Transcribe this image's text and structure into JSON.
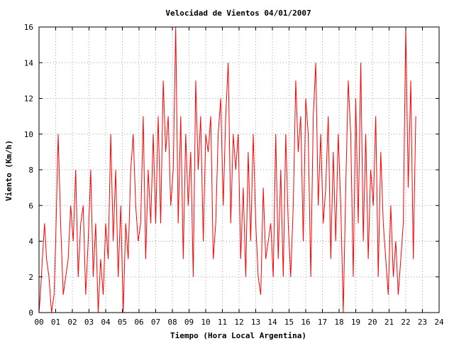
{
  "chart_data": {
    "type": "line",
    "title": "Velocidad de Vientos 04/01/2007",
    "xlabel": "Tiempo (Hora Local Argentina)",
    "ylabel": "Viento (Km/h)",
    "xlim": [
      0,
      24
    ],
    "ylim": [
      0,
      16
    ],
    "x_tick_labels": [
      "00",
      "01",
      "02",
      "03",
      "04",
      "05",
      "06",
      "07",
      "08",
      "09",
      "10",
      "11",
      "12",
      "13",
      "14",
      "15",
      "16",
      "17",
      "18",
      "19",
      "20",
      "21",
      "22",
      "23",
      "24"
    ],
    "y_tick_labels": [
      "0",
      "2",
      "4",
      "6",
      "8",
      "10",
      "12",
      "14",
      "16"
    ],
    "grid": true,
    "legend": "none",
    "series": [
      {
        "color": "#ff0000",
        "x": [
          0.0,
          0.08,
          0.2,
          0.33,
          0.45,
          0.6,
          0.75,
          0.9,
          1.0,
          1.15,
          1.3,
          1.45,
          1.6,
          1.75,
          1.9,
          2.05,
          2.2,
          2.35,
          2.5,
          2.65,
          2.8,
          2.95,
          3.1,
          3.25,
          3.4,
          3.55,
          3.7,
          3.85,
          4.0,
          4.15,
          4.3,
          4.45,
          4.6,
          4.75,
          4.9,
          5.05,
          5.2,
          5.35,
          5.5,
          5.65,
          5.8,
          5.95,
          6.1,
          6.25,
          6.4,
          6.55,
          6.7,
          6.85,
          7.0,
          7.15,
          7.3,
          7.45,
          7.6,
          7.75,
          7.9,
          8.05,
          8.2,
          8.35,
          8.5,
          8.65,
          8.8,
          8.95,
          9.1,
          9.25,
          9.4,
          9.55,
          9.7,
          9.85,
          10.0,
          10.15,
          10.3,
          10.45,
          10.6,
          10.75,
          10.9,
          11.05,
          11.2,
          11.35,
          11.5,
          11.65,
          11.8,
          11.95,
          12.1,
          12.25,
          12.4,
          12.55,
          12.7,
          12.85,
          13.0,
          13.15,
          13.3,
          13.45,
          13.6,
          13.75,
          13.9,
          14.05,
          14.2,
          14.35,
          14.5,
          14.65,
          14.8,
          14.95,
          15.1,
          15.25,
          15.4,
          15.55,
          15.7,
          15.85,
          16.0,
          16.15,
          16.3,
          16.45,
          16.6,
          16.75,
          16.9,
          17.05,
          17.2,
          17.35,
          17.5,
          17.65,
          17.8,
          17.95,
          18.1,
          18.25,
          18.4,
          18.55,
          18.7,
          18.85,
          19.0,
          19.15,
          19.3,
          19.45,
          19.6,
          19.75,
          19.9,
          20.05,
          20.2,
          20.35,
          20.5,
          20.65,
          20.8,
          20.95,
          21.1,
          21.25,
          21.4,
          21.55,
          21.7,
          21.85,
          22.0,
          22.15,
          22.3,
          22.45,
          22.6
        ],
        "y": [
          0,
          1,
          3,
          5,
          3,
          2,
          0,
          1,
          4,
          10,
          5,
          1,
          2,
          3,
          6,
          4,
          8,
          2,
          5,
          6,
          1,
          4,
          8,
          2,
          5,
          0,
          3,
          1,
          5,
          3,
          10,
          4,
          8,
          2,
          6,
          0,
          5,
          3,
          8,
          10,
          6,
          4,
          5,
          11,
          3,
          8,
          5,
          10,
          5,
          11,
          5,
          13,
          9,
          11,
          6,
          8,
          16,
          5,
          11,
          3,
          10,
          6,
          9,
          2,
          13,
          8,
          11,
          4,
          10,
          9,
          11,
          3,
          5,
          10,
          12,
          6,
          11,
          14,
          5,
          10,
          8,
          10,
          3,
          7,
          2,
          9,
          4,
          10,
          5,
          2,
          1,
          7,
          3,
          4,
          5,
          2,
          10,
          3,
          8,
          2,
          10,
          5,
          2,
          6,
          13,
          9,
          11,
          4,
          12,
          10,
          2,
          11,
          14,
          6,
          10,
          5,
          7,
          11,
          3,
          9,
          4,
          10,
          6,
          0,
          7,
          13,
          10,
          2,
          12,
          5,
          14,
          4,
          10,
          3,
          8,
          6,
          11,
          2,
          9,
          5,
          3,
          1,
          6,
          2,
          4,
          1,
          3,
          5,
          16,
          7,
          13,
          3,
          11
        ]
      }
    ]
  }
}
